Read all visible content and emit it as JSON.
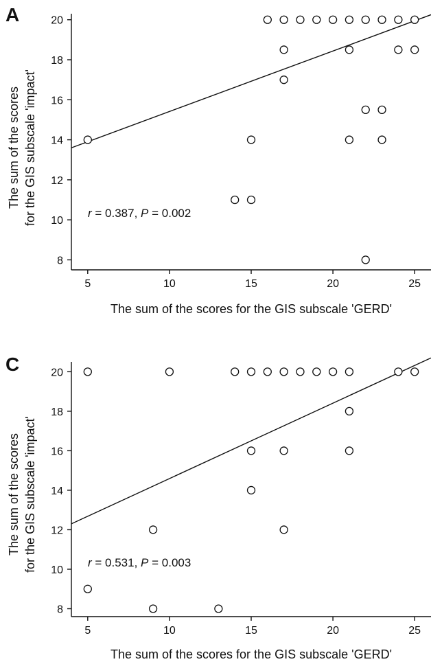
{
  "chart_data": [
    {
      "type": "scatter",
      "panel_label": "A",
      "xlabel": "The sum of the scores for the GIS subscale 'GERD'",
      "ylabel_line1": "The sum of the scores",
      "ylabel_line2": "for the GIS subscale 'impact'",
      "xlim": [
        4,
        26
      ],
      "ylim": [
        7.5,
        20.3
      ],
      "xticks": [
        5,
        10,
        15,
        20,
        25
      ],
      "yticks": [
        8,
        10,
        12,
        14,
        16,
        18,
        20
      ],
      "points": [
        {
          "x": 5,
          "y": 14
        },
        {
          "x": 14,
          "y": 11
        },
        {
          "x": 15,
          "y": 11
        },
        {
          "x": 15,
          "y": 14
        },
        {
          "x": 16,
          "y": 20
        },
        {
          "x": 17,
          "y": 20
        },
        {
          "x": 17,
          "y": 18.5
        },
        {
          "x": 17,
          "y": 17
        },
        {
          "x": 18,
          "y": 20
        },
        {
          "x": 19,
          "y": 20
        },
        {
          "x": 20,
          "y": 20
        },
        {
          "x": 21,
          "y": 20
        },
        {
          "x": 21,
          "y": 18.5
        },
        {
          "x": 21,
          "y": 14
        },
        {
          "x": 22,
          "y": 20
        },
        {
          "x": 22,
          "y": 15.5
        },
        {
          "x": 22,
          "y": 8
        },
        {
          "x": 23,
          "y": 20
        },
        {
          "x": 23,
          "y": 15.5
        },
        {
          "x": 23,
          "y": 14
        },
        {
          "x": 24,
          "y": 20
        },
        {
          "x": 24,
          "y": 18.5
        },
        {
          "x": 25,
          "y": 20
        },
        {
          "x": 25,
          "y": 18.5
        }
      ],
      "fit_line": {
        "x0": 4,
        "y0": 13.6,
        "x1": 26,
        "y1": 20.25
      },
      "annotation": {
        "r_symbol": "r",
        "r_text": " = 0.387, ",
        "p_symbol": "P",
        "p_text": " = 0.002"
      }
    },
    {
      "type": "scatter",
      "panel_label": "C",
      "xlabel": "The sum of the scores for the GIS subscale 'GERD'",
      "ylabel_line1": "The sum of the scores",
      "ylabel_line2": "for the GIS subscale 'impact'",
      "xlim": [
        4,
        26
      ],
      "ylim": [
        7.6,
        20.5
      ],
      "xticks": [
        5,
        10,
        15,
        20,
        25
      ],
      "yticks": [
        8,
        10,
        12,
        14,
        16,
        18,
        20
      ],
      "points": [
        {
          "x": 5,
          "y": 20
        },
        {
          "x": 10,
          "y": 20
        },
        {
          "x": 14,
          "y": 20
        },
        {
          "x": 15,
          "y": 20
        },
        {
          "x": 16,
          "y": 20
        },
        {
          "x": 17,
          "y": 20
        },
        {
          "x": 18,
          "y": 20
        },
        {
          "x": 19,
          "y": 20
        },
        {
          "x": 20,
          "y": 20
        },
        {
          "x": 21,
          "y": 20
        },
        {
          "x": 24,
          "y": 20
        },
        {
          "x": 25,
          "y": 20
        },
        {
          "x": 21,
          "y": 18
        },
        {
          "x": 15,
          "y": 16
        },
        {
          "x": 17,
          "y": 16
        },
        {
          "x": 21,
          "y": 16
        },
        {
          "x": 15,
          "y": 14
        },
        {
          "x": 9,
          "y": 12
        },
        {
          "x": 17,
          "y": 12
        },
        {
          "x": 5,
          "y": 9
        },
        {
          "x": 9,
          "y": 8
        },
        {
          "x": 13,
          "y": 8
        }
      ],
      "fit_line": {
        "x0": 4,
        "y0": 12.3,
        "x1": 26,
        "y1": 20.7
      },
      "annotation": {
        "r_symbol": "r",
        "r_text": " = 0.531, ",
        "p_symbol": "P",
        "p_text": " = 0.003"
      }
    }
  ]
}
